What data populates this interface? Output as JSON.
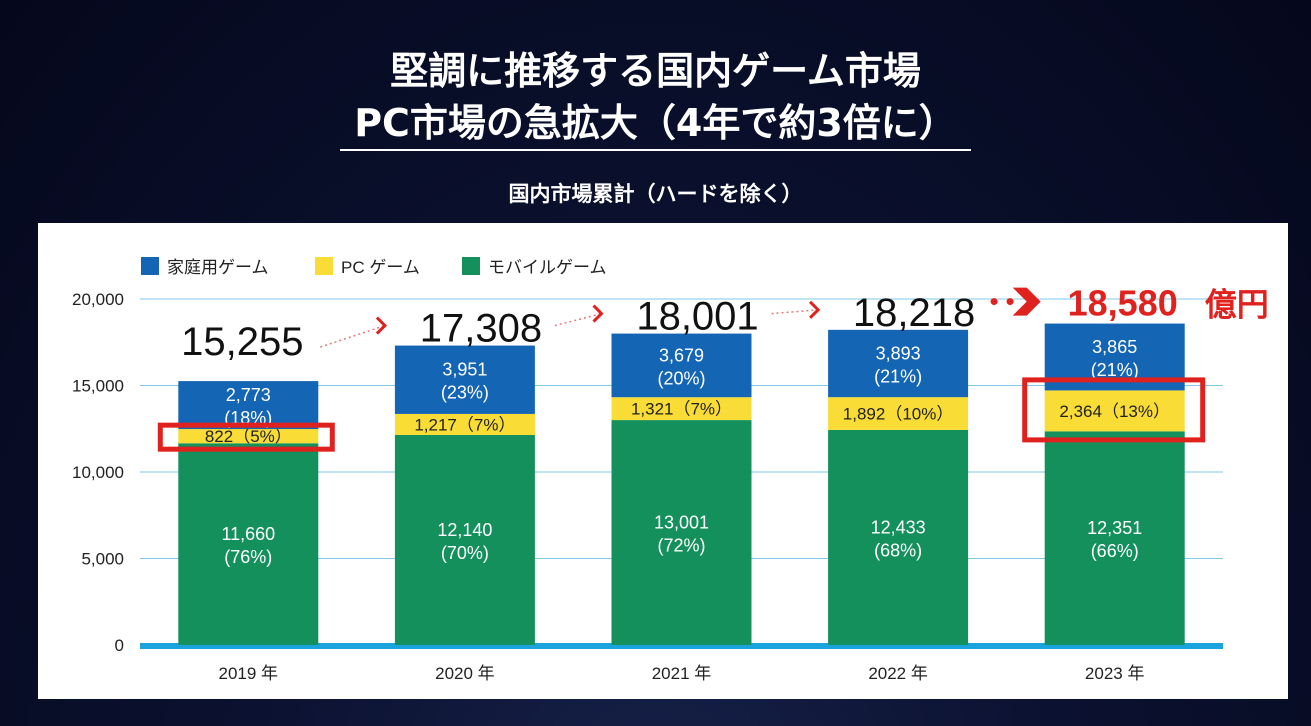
{
  "title": {
    "line1": "堅調に推移する国内ゲーム市場",
    "line2": "PC市場の急拡大（4年で約3倍に）"
  },
  "subtitle": "国内市場累計（ハードを除く）",
  "colors": {
    "home_console": "#1565b5",
    "pc": "#f9dc35",
    "mobile": "#14905c",
    "highlight": "#e0221f",
    "axis_line": "#1ba3de",
    "grid": "#7fcbe8"
  },
  "chart_data": {
    "type": "bar",
    "stacked": true,
    "categories": [
      "2019 年",
      "2020 年",
      "2021 年",
      "2022 年",
      "2023 年"
    ],
    "series": [
      {
        "name": "モバイルゲーム",
        "values": [
          11660,
          12140,
          13001,
          12433,
          12351
        ],
        "labels": [
          "11,660",
          "12,140",
          "13,001",
          "12,433",
          "12,351"
        ],
        "pct": [
          "(76%)",
          "(70%)",
          "(72%)",
          "(68%)",
          "(66%)"
        ]
      },
      {
        "name": "PC ゲーム",
        "values": [
          822,
          1217,
          1321,
          1892,
          2364
        ],
        "labels": [
          "822（5%）",
          "1,217（7%）",
          "1,321（7%）",
          "1,892（10%）",
          "2,364（13%）"
        ]
      },
      {
        "name": "家庭用ゲーム",
        "values": [
          2773,
          3951,
          3679,
          3893,
          3865
        ],
        "labels": [
          "2,773",
          "3,951",
          "3,679",
          "3,893",
          "3,865"
        ],
        "pct": [
          "(18%)",
          "(23%)",
          "(20%)",
          "(21%)",
          "(21%)"
        ]
      }
    ],
    "totals": [
      15255,
      17308,
      18001,
      18218,
      18580
    ],
    "total_labels": [
      "15,255",
      "17,308",
      "18,001",
      "18,218",
      "18,580"
    ],
    "total_unit": "億円",
    "legend": [
      "家庭用ゲーム",
      "PC ゲーム",
      "モバイルゲーム"
    ],
    "legend_position": "top-left",
    "yticks": [
      "0",
      "5,000",
      "10,000",
      "15,000",
      "20,000"
    ],
    "ylim": [
      0,
      20000
    ],
    "ystep": 5000,
    "grid": true
  }
}
